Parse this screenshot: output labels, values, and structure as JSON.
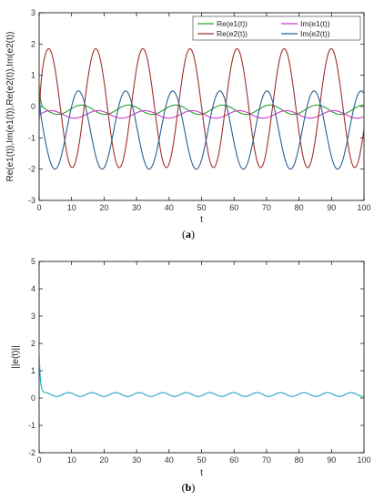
{
  "chart_data": [
    {
      "type": "line",
      "panel_label": "a",
      "xlabel": "t",
      "ylabel": "Re(e1(t)),Im(e1(t)),Re(e2(t)),Im(e2(t))",
      "xlim": [
        0,
        100
      ],
      "ylim": [
        -3,
        3
      ],
      "xticks": [
        0,
        10,
        20,
        30,
        40,
        50,
        60,
        70,
        80,
        90,
        100
      ],
      "yticks": [
        -3,
        -2,
        -1,
        0,
        1,
        2,
        3
      ],
      "grid": false,
      "legend": "top-right",
      "legend_layout": "two-columns",
      "series": [
        {
          "name": "Re(e1(t))",
          "color": "#2ca02c",
          "initial_value": 0.8,
          "oscillation": {
            "period": 14.5,
            "amplitude": 0.15,
            "mean": -0.1,
            "phase": 2.2
          }
        },
        {
          "name": "Im(e1(t))",
          "color": "#c83cc8",
          "initial_value": -0.3,
          "oscillation": {
            "period": 14.5,
            "amplitude": 0.12,
            "mean": -0.25,
            "phase": 0.0
          }
        },
        {
          "name": "Re(e2(t))",
          "color": "#a0302c",
          "initial_value": -0.5,
          "oscillation": {
            "period": 14.5,
            "amplitude": 1.9,
            "mean": -0.05,
            "phase": 0.3
          }
        },
        {
          "name": "Im(e2(t))",
          "color": "#2a5f92",
          "initial_value": 0.4,
          "oscillation": {
            "period": 14.5,
            "amplitude": 1.25,
            "mean": -0.75,
            "phase": 2.6
          }
        }
      ]
    },
    {
      "type": "line",
      "panel_label": "b",
      "xlabel": "t",
      "ylabel": "||e(t)||",
      "xlim": [
        0,
        100
      ],
      "ylim": [
        -2,
        5
      ],
      "xticks": [
        0,
        10,
        20,
        30,
        40,
        50,
        60,
        70,
        80,
        90,
        100
      ],
      "yticks": [
        -2,
        -1,
        0,
        1,
        2,
        3,
        4,
        5
      ],
      "grid": false,
      "series": [
        {
          "color": "#1fa3c4",
          "initial_value": 1.8,
          "oscillation": {
            "period": 7.25,
            "amplitude": 0.07,
            "mean": 0.13,
            "phase": 0.0
          }
        }
      ]
    }
  ],
  "captions": {
    "a": "(a)",
    "b": "(b)"
  }
}
